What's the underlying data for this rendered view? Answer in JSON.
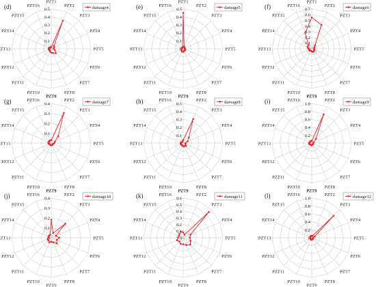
{
  "colors": {
    "series": "#e8262b",
    "grid": "#d4d4d4",
    "text": "#1a1a1a",
    "legend_border": "#8a8a8a"
  },
  "axes": [
    "PZT1",
    "PZT2",
    "PZT3",
    "PZT4",
    "PZT5",
    "PZT6",
    "PZT7",
    "PZT8",
    "PZT9",
    "PZT10",
    "PZT11",
    "PZT12",
    "PZT13",
    "PZT14",
    "PZT15",
    "PZT16"
  ],
  "chart_data": [
    {
      "type": "radar",
      "panel": "(d)",
      "legend": "damage4",
      "rmax": 0.5,
      "ticks": [
        "0",
        "0.1",
        "0.2",
        "0.3",
        "0.4",
        "0.5"
      ],
      "tick_values": [
        0,
        0.1,
        0.2,
        0.3,
        0.4,
        0.5
      ],
      "values": [
        0.02,
        0.38,
        0.05,
        0.04,
        0.03,
        0.05,
        0.08,
        0.06,
        0.05,
        0.04,
        0.03,
        0.03,
        0.02,
        0.03,
        0.02,
        0.02
      ]
    },
    {
      "type": "radar",
      "panel": "(e)",
      "legend": "damage5",
      "rmax": 0.5,
      "ticks": [
        "0",
        "0.1",
        "0.2",
        "0.3",
        "0.4",
        "0.5"
      ],
      "tick_values": [
        0,
        0.1,
        0.2,
        0.3,
        0.4,
        0.5
      ],
      "values": [
        0.45,
        0.03,
        0.02,
        0.02,
        0.02,
        0.03,
        0.03,
        0.03,
        0.04,
        0.04,
        0.03,
        0.02,
        0.02,
        0.02,
        0.02,
        0.02
      ]
    },
    {
      "type": "radar",
      "panel": "(f)",
      "legend": "damage6",
      "rmax": 0.7,
      "ticks": [
        "0",
        "0.1",
        "0.2",
        "0.3",
        "0.4",
        "0.5",
        "0.6",
        "0.7"
      ],
      "tick_values": [
        0,
        0.1,
        0.2,
        0.3,
        0.4,
        0.5,
        0.6,
        0.7
      ],
      "values": [
        0.55,
        0.45,
        0.08,
        0.05,
        0.04,
        0.05,
        0.06,
        0.06,
        0.05,
        0.04,
        0.05,
        0.05,
        0.06,
        0.08,
        0.08,
        0.3
      ]
    },
    {
      "type": "radar",
      "panel": "(g)",
      "legend": "damage7",
      "rmax": 0.4,
      "ticks": [
        "0",
        "0.1",
        "0.2",
        "0.3",
        "0.4"
      ],
      "tick_values": [
        0,
        0.1,
        0.2,
        0.3,
        0.4
      ],
      "values": [
        0.03,
        0.33,
        0.1,
        0.04,
        0.03,
        0.02,
        0.02,
        0.02,
        0.02,
        0.02,
        0.02,
        0.02,
        0.03,
        0.03,
        0.03,
        0.03
      ]
    },
    {
      "type": "radar",
      "panel": "(h)",
      "legend": "damage8",
      "rmax": 0.5,
      "ticks": [
        "0",
        "0.1",
        "0.2",
        "0.3",
        "0.4",
        "0.5"
      ],
      "tick_values": [
        0,
        0.1,
        0.2,
        0.3,
        0.4,
        0.5
      ],
      "values": [
        0.04,
        0.33,
        0.1,
        0.06,
        0.03,
        0.03,
        0.05,
        0.04,
        0.04,
        0.03,
        0.03,
        0.03,
        0.03,
        0.03,
        0.02,
        0.02
      ]
    },
    {
      "type": "radar",
      "panel": "(i)",
      "legend": "damage9",
      "rmax": 1.0,
      "ticks": [
        "0",
        "0.2",
        "0.4",
        "0.6",
        "0.8",
        "1.0"
      ],
      "tick_values": [
        0,
        0.2,
        0.4,
        0.6,
        0.8,
        1.0
      ],
      "values": [
        0.06,
        0.78,
        0.15,
        0.05,
        0.04,
        0.04,
        0.04,
        0.04,
        0.05,
        0.05,
        0.05,
        0.06,
        0.07,
        0.06,
        0.05,
        0.06
      ]
    },
    {
      "type": "radar",
      "panel": "(j)",
      "legend": "damage10",
      "rmax": 0.4,
      "ticks": [
        "0",
        "0.1",
        "0.2",
        "0.3",
        "0.4"
      ],
      "tick_values": [
        0,
        0.1,
        0.2,
        0.3,
        0.4
      ],
      "values": [
        0.18,
        0.05,
        0.2,
        0.05,
        0.08,
        0.06,
        0.08,
        0.05,
        0.04,
        0.05,
        0.04,
        0.04,
        0.03,
        0.03,
        0.03,
        0.03
      ]
    },
    {
      "type": "radar",
      "panel": "(k)",
      "legend": "damage11",
      "rmax": 0.6,
      "ticks": [
        "0",
        "0.1",
        "0.2",
        "0.3",
        "0.4",
        "0.5",
        "0.6"
      ],
      "tick_values": [
        0,
        0.1,
        0.2,
        0.3,
        0.4,
        0.5,
        0.6
      ],
      "values": [
        0.08,
        0.05,
        0.55,
        0.12,
        0.1,
        0.12,
        0.15,
        0.12,
        0.1,
        0.1,
        0.08,
        0.1,
        0.08,
        0.07,
        0.08,
        0.1
      ]
    },
    {
      "type": "radar",
      "panel": "(l)",
      "legend": "damage12",
      "rmax": 1.0,
      "ticks": [
        "0",
        "0.2",
        "0.4",
        "0.6",
        "0.8",
        "1.0"
      ],
      "tick_values": [
        0,
        0.2,
        0.4,
        0.6,
        0.8,
        1.0
      ],
      "values": [
        0.05,
        0.05,
        0.78,
        0.08,
        0.04,
        0.04,
        0.04,
        0.04,
        0.05,
        0.05,
        0.04,
        0.04,
        0.04,
        0.04,
        0.04,
        0.05
      ]
    }
  ]
}
